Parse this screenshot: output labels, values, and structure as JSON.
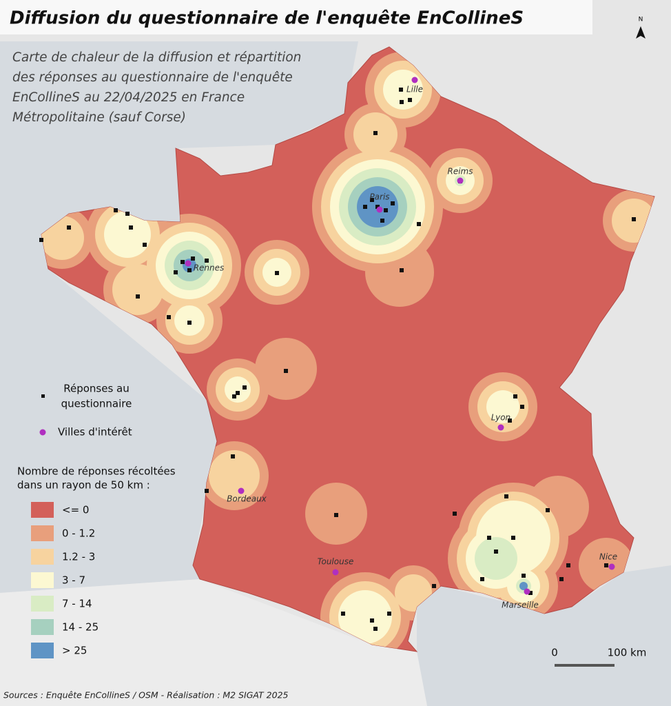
{
  "header": {
    "title": "Diffusion du questionnaire de l'enquête EnCollineS",
    "subtitle_lines": [
      "Carte de chaleur de la diffusion et répartition",
      "des réponses au questionnaire de l'enquête",
      "EnCollineS au 22/04/2025 en France",
      "Métropolitaine (sauf Corse)"
    ]
  },
  "north_arrow": "N",
  "cities": [
    {
      "label": "Lille"
    },
    {
      "label": "Reims"
    },
    {
      "label": "Paris"
    },
    {
      "label": "Rennes"
    },
    {
      "label": "Lyon"
    },
    {
      "label": "Bordeaux"
    },
    {
      "label": "Toulouse"
    },
    {
      "label": "Nice"
    },
    {
      "label": "Marseille"
    }
  ],
  "legend": {
    "points_lines": [
      "Réponses au",
      "questionnaire"
    ],
    "cities": "Villes d'intérêt",
    "heat_title_lines": [
      "Nombre de réponses récoltées",
      "dans un rayon de 50 km :"
    ],
    "classes": [
      {
        "label": "<= 0",
        "color": "#d3605a"
      },
      {
        "label": "0 - 1.2",
        "color": "#e89f7c"
      },
      {
        "label": "1.2 - 3",
        "color": "#f7d39f"
      },
      {
        "label": "3 - 7",
        "color": "#fcf8d2"
      },
      {
        "label": "7 - 14",
        "color": "#d9ecc4"
      },
      {
        "label": "14 - 25",
        "color": "#a6d0bf"
      },
      {
        "label": "> 25",
        "color": "#5f94c5"
      }
    ]
  },
  "scale_bar": {
    "labels": [
      "0",
      "100 km"
    ]
  },
  "footer": {
    "source": "Sources : Enquête EnCollineS / OSM - Réalisation : M2 SIGAT 2025"
  }
}
